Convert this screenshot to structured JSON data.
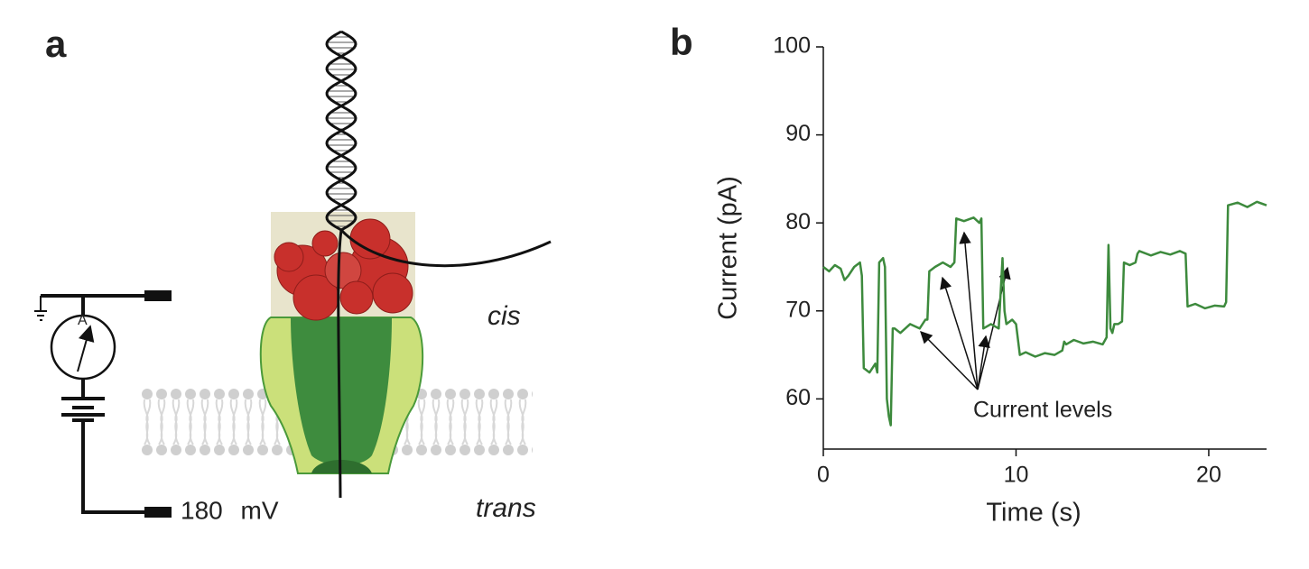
{
  "panel_a": {
    "label": "a",
    "cis": "cis",
    "trans": "trans",
    "voltage": "180 mV",
    "ammeter": "A"
  },
  "chart_data": {
    "type": "line",
    "panel_label": "b",
    "x_label": "Time (s)",
    "y_label": "Current (pA)",
    "annotation": "Current levels",
    "xlim": [
      0,
      23
    ],
    "ylim": [
      54.3,
      100
    ],
    "xticks": [
      0,
      10,
      20
    ],
    "yticks": [
      60,
      70,
      80,
      90,
      100
    ],
    "color": "#3d8a3d",
    "x": [
      0,
      0.3,
      0.6,
      0.9,
      1.1,
      1.3,
      1.6,
      1.9,
      2.0,
      2.1,
      2.4,
      2.7,
      2.8,
      2.9,
      3.1,
      3.2,
      3.3,
      3.4,
      3.5,
      3.6,
      3.7,
      4.0,
      4.5,
      5.0,
      5.3,
      5.4,
      5.5,
      5.8,
      6.2,
      6.6,
      6.8,
      6.9,
      7.3,
      7.8,
      8.1,
      8.2,
      8.3,
      8.7,
      9.1,
      9.3,
      9.4,
      9.5,
      9.8,
      10.0,
      10.2,
      10.5,
      11.0,
      11.5,
      12.0,
      12.4,
      12.5,
      12.6,
      13.0,
      13.5,
      14.0,
      14.5,
      14.7,
      14.8,
      14.9,
      15.0,
      15.1,
      15.3,
      15.5,
      15.6,
      15.9,
      16.2,
      16.3,
      16.4,
      17.0,
      17.5,
      18.0,
      18.5,
      18.8,
      18.9,
      19.3,
      19.8,
      20.3,
      20.8,
      20.9,
      21.0,
      21.5,
      22.0,
      22.5,
      23.0
    ],
    "y": [
      75,
      74.5,
      75.2,
      74.8,
      73.5,
      74,
      75,
      75.5,
      74,
      63.5,
      63,
      64,
      63,
      75.5,
      76,
      75,
      60,
      58,
      57,
      68,
      68,
      67.5,
      68.5,
      68,
      69,
      69,
      74.5,
      75,
      75.5,
      75,
      75.5,
      80.5,
      80.2,
      80.6,
      80,
      80.5,
      68,
      68.5,
      68,
      76,
      70,
      68.5,
      69,
      68.5,
      65,
      65.3,
      64.8,
      65.2,
      65,
      65.5,
      66.5,
      66.2,
      66.7,
      66.3,
      66.5,
      66.2,
      67,
      77.5,
      68,
      67.5,
      68.5,
      68.5,
      68.8,
      75.5,
      75.2,
      75.5,
      76.5,
      76.8,
      76.3,
      76.7,
      76.4,
      76.8,
      76.5,
      70.5,
      70.8,
      70.3,
      70.6,
      70.5,
      71,
      82,
      82.3,
      81.8,
      82.4,
      82
    ]
  }
}
